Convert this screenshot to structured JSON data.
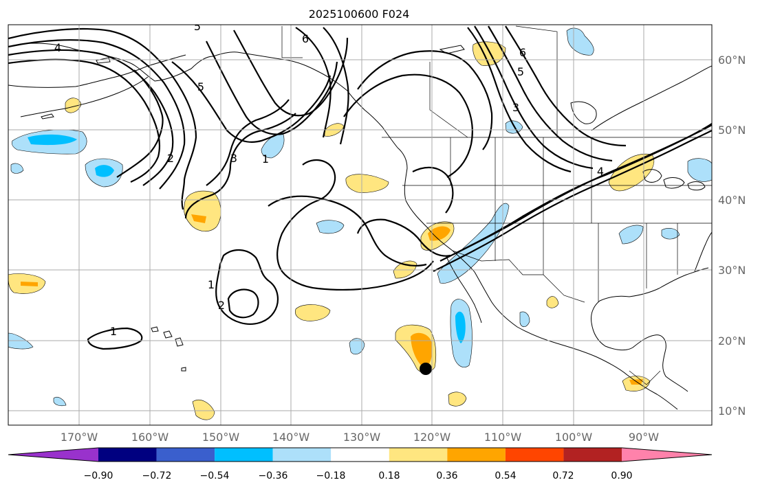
{
  "title": "2025100600 F024",
  "map": {
    "lon_labels": [
      "170°W",
      "160°W",
      "150°W",
      "140°W",
      "130°W",
      "120°W",
      "110°W",
      "100°W",
      "90°W"
    ],
    "lat_labels": [
      "60°N",
      "50°N",
      "40°N",
      "30°N",
      "20°N",
      "10°N"
    ],
    "contour_labels": [
      "4",
      "5",
      "6",
      "5",
      "6",
      "5",
      "3",
      "2",
      "3",
      "1",
      "4",
      "1",
      "2",
      "1"
    ],
    "marker": "storm-center"
  },
  "colorbar": {
    "tick_labels": [
      "−0.90",
      "−0.72",
      "−0.54",
      "−0.36",
      "−0.18",
      "0.18",
      "0.36",
      "0.54",
      "0.72",
      "0.90"
    ],
    "colors": [
      "#9932CC",
      "#000080",
      "#3A5FCD",
      "#00BFFF",
      "#ADE0FA",
      "#FFFFFF",
      "#FFE680",
      "#FFA500",
      "#FF4500",
      "#B22222",
      "#FF82AB"
    ]
  }
}
